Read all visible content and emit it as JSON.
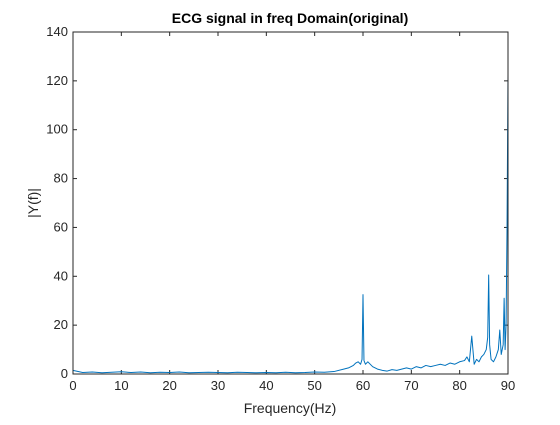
{
  "chart_data": {
    "type": "line",
    "title": "ECG signal in freq Domain(original)",
    "xlabel": "Frequency(Hz)",
    "ylabel": "|Y(f)|",
    "xlim": [
      0,
      90
    ],
    "ylim": [
      0,
      140
    ],
    "xticks": [
      0,
      10,
      20,
      30,
      40,
      50,
      60,
      70,
      80,
      90
    ],
    "yticks": [
      0,
      20,
      40,
      60,
      80,
      100,
      120,
      140
    ],
    "grid": false,
    "box": true,
    "series_color": "#0072BD",
    "series": [
      {
        "x": [
          0,
          2,
          4,
          6,
          8,
          10,
          12,
          14,
          16,
          18,
          20,
          22,
          24,
          26,
          28,
          30,
          32,
          34,
          36,
          38,
          40,
          42,
          44,
          46,
          48,
          50,
          52,
          54,
          56,
          57,
          58,
          58.5,
          59,
          59.5,
          59.8,
          60,
          60.2,
          60.5,
          61,
          62,
          63,
          64,
          65,
          66,
          67,
          68,
          69,
          70,
          71,
          72,
          73,
          74,
          75,
          76,
          77,
          78,
          79,
          80,
          81,
          81.5,
          82,
          82.5,
          83,
          83.5,
          84,
          84.5,
          85,
          85.5,
          85.8,
          86,
          86.2,
          86.5,
          87,
          87.5,
          88,
          88.3,
          88.6,
          89,
          89.2,
          89.4,
          89.6,
          89.8,
          90
        ],
        "y": [
          1.5,
          0.6,
          0.8,
          0.5,
          0.7,
          0.9,
          0.6,
          0.8,
          0.5,
          0.7,
          0.6,
          0.8,
          0.5,
          0.6,
          0.7,
          0.6,
          0.5,
          0.7,
          0.6,
          0.5,
          0.6,
          0.5,
          0.7,
          0.5,
          0.6,
          0.8,
          0.7,
          1.0,
          2.0,
          2.5,
          3.5,
          4.5,
          5.0,
          4.0,
          6.0,
          32.5,
          5.5,
          4.0,
          5.0,
          3.0,
          2.0,
          1.5,
          1.2,
          1.8,
          1.5,
          2.0,
          2.5,
          2.0,
          3.0,
          2.5,
          3.5,
          3.0,
          3.5,
          4.0,
          3.5,
          4.5,
          4.0,
          5.0,
          5.5,
          7.0,
          5.0,
          15.5,
          4.0,
          6.0,
          5.0,
          7.0,
          8.0,
          10.0,
          15.0,
          40.5,
          12.0,
          6.0,
          5.0,
          7.0,
          10.0,
          18.0,
          8.0,
          12.0,
          31.0,
          10.0,
          20.0,
          60.0,
          123.0
        ]
      }
    ]
  }
}
